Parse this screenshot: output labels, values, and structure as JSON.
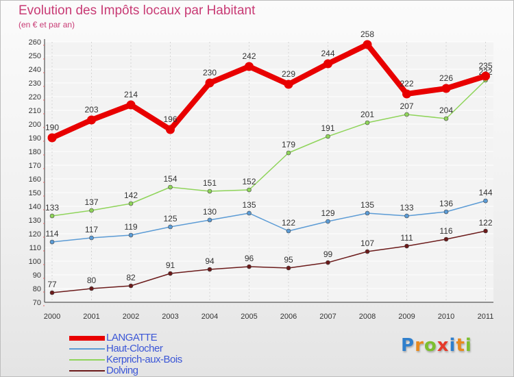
{
  "header": {
    "title": "Evolution des Impôts locaux par Habitant",
    "subtitle": "(en € et par an)"
  },
  "chart_data": {
    "type": "line",
    "title": "Evolution des Impôts locaux par Habitant",
    "subtitle": "(en € et par an)",
    "xlabel": "",
    "ylabel": "",
    "categories": [
      "2000",
      "2001",
      "2002",
      "2003",
      "2004",
      "2005",
      "2006",
      "2007",
      "2008",
      "2009",
      "2010",
      "2011"
    ],
    "ylim": [
      70,
      260
    ],
    "yticks": [
      70,
      80,
      90,
      100,
      110,
      120,
      130,
      140,
      150,
      160,
      170,
      180,
      190,
      200,
      210,
      220,
      230,
      240,
      250,
      260
    ],
    "grid": true,
    "legend_position": "bottom-left",
    "series": [
      {
        "name": "LANGATTE",
        "color": "#e80000",
        "values": [
          190,
          203,
          214,
          196,
          230,
          242,
          229,
          244,
          258,
          222,
          226,
          235
        ]
      },
      {
        "name": "Haut-Clocher",
        "color": "#5b9bd5",
        "values": [
          114,
          117,
          119,
          125,
          130,
          135,
          122,
          129,
          135,
          133,
          136,
          144
        ]
      },
      {
        "name": "Kerprich-aux-Bois",
        "color": "#8fd45a",
        "values": [
          133,
          137,
          142,
          154,
          151,
          152,
          179,
          191,
          201,
          207,
          204,
          232
        ]
      },
      {
        "name": "Dolving",
        "color": "#6b1a1a",
        "values": [
          77,
          80,
          82,
          91,
          94,
          96,
          95,
          99,
          107,
          111,
          116,
          122
        ]
      }
    ]
  },
  "logo": {
    "letters": [
      {
        "ch": "P",
        "color": "#2f7fcc"
      },
      {
        "ch": "r",
        "color": "#e8891e"
      },
      {
        "ch": "o",
        "color": "#7cbf2f"
      },
      {
        "ch": "x",
        "color": "#e53a2a"
      },
      {
        "ch": "i",
        "color": "#2f7fcc"
      },
      {
        "ch": "t",
        "color": "#e8891e"
      },
      {
        "ch": "i",
        "color": "#7cbf2f"
      }
    ]
  }
}
